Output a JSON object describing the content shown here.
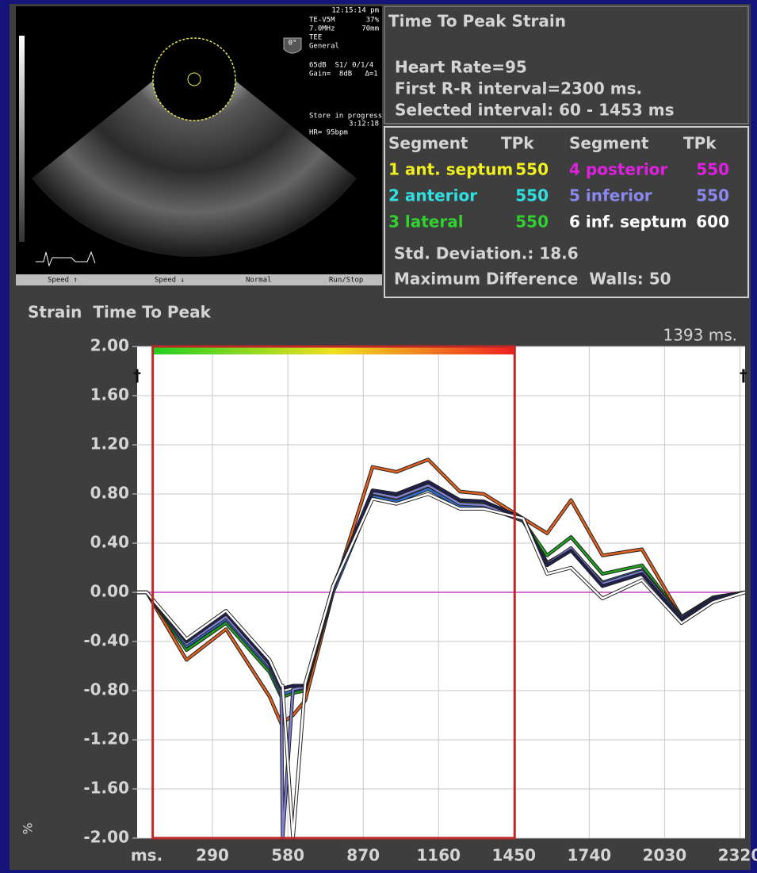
{
  "echo": {
    "labels": [
      "12:15:14 pm",
      "TE-V5M",
      "37%",
      "7.0MHz",
      "70mm",
      "TEE",
      "General",
      "65dB  S1/ 0/1/4",
      "Gain=  8dB   Δ=1",
      "Store in progress",
      "3:12:18",
      "HR= 95bpm",
      "0°"
    ],
    "toolbar": [
      "Speed ↑",
      "Speed ↓",
      "Normal",
      "Run/Stop"
    ]
  },
  "summary": {
    "title": "Time To Peak Strain",
    "lines": [
      "Heart Rate=95",
      "First R-R interval=2300 ms.",
      "Selected interval: 60 - 1453 ms"
    ]
  },
  "segments": {
    "header": [
      "Segment",
      "TPk",
      "Segment",
      "TPk"
    ],
    "rows": [
      {
        "name": "1 ant. septum",
        "tpk": "550",
        "color": "#f0f020"
      },
      {
        "name": "2 anterior",
        "tpk": "550",
        "color": "#30e0e0"
      },
      {
        "name": "3 lateral",
        "tpk": "550",
        "color": "#30d030"
      },
      {
        "name": "4 posterior",
        "tpk": "550",
        "color": "#e020e0"
      },
      {
        "name": "5 inferior",
        "tpk": "550",
        "color": "#8888ee"
      },
      {
        "name": "6 inf. septum",
        "tpk": "600",
        "color": "#ffffff"
      }
    ]
  },
  "stats": [
    "Std. Deviation.: 18.6",
    "Maximum Difference  Walls: 50"
  ],
  "chart_data": {
    "type": "line",
    "title": "Strain  Time To Peak",
    "x_unit_label": "ms.",
    "y_axis_label": "%",
    "cursor_label": "1393 ms.",
    "edge_marks": [
      "†",
      "†"
    ],
    "interval": [
      60,
      1453
    ],
    "interval_color": "#c02828",
    "zero_line_color": "#c040c0",
    "grid": true,
    "x": [
      0,
      37,
      190,
      342,
      510,
      555,
      560,
      600,
      647,
      754,
      906,
      998,
      1120,
      1242,
      1334,
      1486,
      1578,
      1670,
      1791,
      1943,
      2095,
      2217,
      2340
    ],
    "series": [
      {
        "color": "#e06020",
        "values": [
          0,
          0,
          -0.55,
          -0.3,
          -0.85,
          -1.07,
          -1.06,
          -1.0,
          -0.88,
          0,
          1.02,
          0.98,
          1.08,
          0.82,
          0.8,
          0.6,
          0.48,
          0.75,
          0.3,
          0.35,
          -0.2,
          -0.05,
          0
        ]
      },
      {
        "color": "#20a020",
        "values": [
          0,
          0,
          -0.47,
          -0.25,
          -0.65,
          -0.85,
          -0.85,
          -0.82,
          -0.8,
          0.02,
          0.8,
          0.78,
          0.88,
          0.74,
          0.72,
          0.58,
          0.3,
          0.45,
          0.15,
          0.22,
          -0.2,
          -0.04,
          0
        ]
      },
      {
        "color": "#3070d0",
        "values": [
          0,
          0,
          -0.44,
          -0.22,
          -0.62,
          -0.83,
          -0.83,
          -0.8,
          -0.78,
          0,
          0.78,
          0.74,
          0.84,
          0.7,
          0.7,
          0.58,
          0.24,
          0.35,
          0.08,
          0.18,
          -0.2,
          -0.05,
          0
        ]
      },
      {
        "color": "#8080d0",
        "values": [
          0,
          0,
          -0.42,
          -0.2,
          -0.6,
          -0.8,
          -2.0,
          -0.79,
          -0.77,
          0.03,
          0.81,
          0.77,
          0.87,
          0.72,
          0.71,
          0.59,
          0.23,
          0.36,
          0.07,
          0.17,
          -0.21,
          -0.05,
          0
        ]
      },
      {
        "color": "#202050",
        "values": [
          0,
          0,
          -0.4,
          -0.17,
          -0.58,
          -0.78,
          -0.78,
          -0.76,
          -0.76,
          0.05,
          0.83,
          0.8,
          0.9,
          0.75,
          0.74,
          0.6,
          0.22,
          0.34,
          0.05,
          0.15,
          -0.22,
          -0.05,
          0
        ]
      },
      {
        "color": "#ffffff",
        "values": [
          0,
          0,
          -0.38,
          -0.15,
          -0.55,
          -0.76,
          -0.76,
          -2.0,
          -0.74,
          0.05,
          0.76,
          0.72,
          0.8,
          0.68,
          0.68,
          0.6,
          0.15,
          0.2,
          -0.05,
          0.1,
          -0.25,
          -0.08,
          0
        ]
      }
    ],
    "xlim": [
      0,
      2340
    ],
    "ylim": [
      -2,
      2
    ],
    "xticks": [
      290,
      580,
      870,
      1160,
      1450,
      1740,
      2030,
      2320
    ],
    "yticks": [
      {
        "value": 2,
        "label": "2.00"
      },
      {
        "value": 1.6,
        "label": "1.60"
      },
      {
        "value": 1.2,
        "label": "1.20"
      },
      {
        "value": 0.8,
        "label": "0.80"
      },
      {
        "value": 0.4,
        "label": "0.40"
      },
      {
        "value": 0,
        "label": "0.00"
      },
      {
        "value": -0.4,
        "label": "-0.40"
      },
      {
        "value": -0.8,
        "label": "-0.80"
      },
      {
        "value": -1.2,
        "label": "-1.20"
      },
      {
        "value": -1.6,
        "label": "-1.60"
      },
      {
        "value": -2,
        "label": "-2.00"
      }
    ]
  }
}
